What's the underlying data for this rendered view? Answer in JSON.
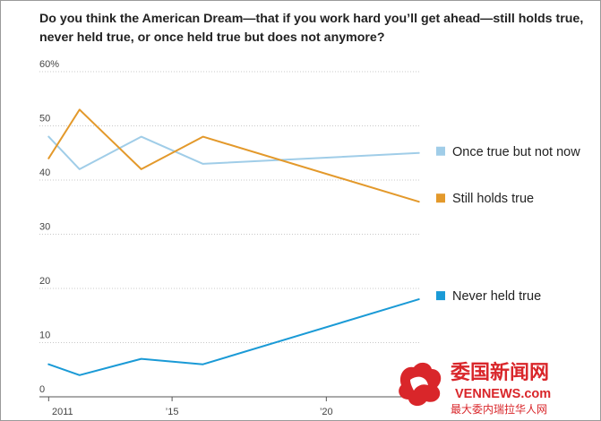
{
  "title": "Do you think the American Dream—that if you work hard you’ll get ahead—still holds true, never held true, or once held true but does not anymore?",
  "chart_data": {
    "type": "line",
    "title": "Do you think the American Dream—that if you work hard you’ll get ahead—still holds true, never held true, or once held true but does not anymore?",
    "x": [
      2011,
      2012,
      2014,
      2016,
      2023
    ],
    "xlim": [
      2010.7,
      2023.3
    ],
    "ylim": [
      0,
      60
    ],
    "y_ticks": [
      0,
      10,
      20,
      30,
      40,
      50,
      60
    ],
    "y_tick_labels": [
      "0",
      "10",
      "20",
      "30",
      "40",
      "50",
      "60%"
    ],
    "x_ticks": [
      2011,
      2015,
      2020
    ],
    "x_tick_labels": [
      "2011",
      "’15",
      "’20"
    ],
    "grid": true,
    "legend_position": "right",
    "series": [
      {
        "name": "Once true but not now",
        "color": "#a0cde8",
        "values": [
          48,
          42,
          48,
          43,
          45
        ]
      },
      {
        "name": "Still holds true",
        "color": "#e3992b",
        "values": [
          44,
          53,
          42,
          48,
          36
        ]
      },
      {
        "name": "Never held true",
        "color": "#1a9ad6",
        "values": [
          6,
          4,
          7,
          6,
          18
        ]
      }
    ]
  },
  "watermark": {
    "name_cn": "委国新闻网",
    "domain": "VENNEWS.com",
    "slogan_cn": "最大委内瑞拉华人网",
    "brand_color": "#d9262a"
  }
}
